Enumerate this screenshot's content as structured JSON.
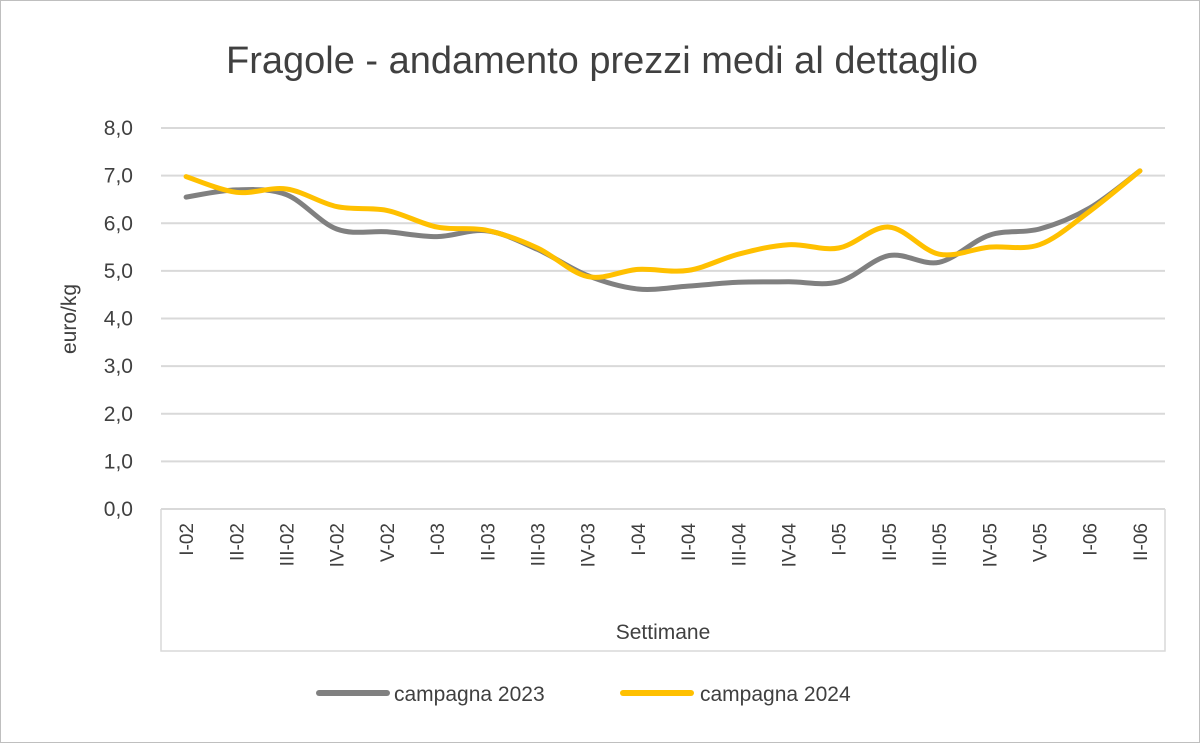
{
  "chart_data": {
    "type": "line",
    "title": "Fragole - andamento prezzi medi al dettaglio",
    "xlabel": "Settimane",
    "ylabel": "euro/kg",
    "ylim": [
      0,
      8
    ],
    "y_ticks": [
      "0,0",
      "1,0",
      "2,0",
      "3,0",
      "4,0",
      "5,0",
      "6,0",
      "7,0",
      "8,0"
    ],
    "categories": [
      "I-02",
      "II-02",
      "III-02",
      "IV-02",
      "V-02",
      "I-03",
      "II-03",
      "III-03",
      "IV-03",
      "I-04",
      "II-04",
      "III-04",
      "IV-04",
      "I-05",
      "II-05",
      "III-05",
      "IV-05",
      "V-05",
      "I-06",
      "II-06"
    ],
    "grid": true,
    "legend_position": "bottom",
    "series": [
      {
        "name": "campagna 2023",
        "color": "#808080",
        "values": [
          6.55,
          6.7,
          6.6,
          5.88,
          5.82,
          5.72,
          5.84,
          5.45,
          4.9,
          4.62,
          4.68,
          4.76,
          4.77,
          4.77,
          5.32,
          5.18,
          5.75,
          5.88,
          6.32,
          7.1
        ]
      },
      {
        "name": "campagna 2024",
        "color": "#ffc000",
        "values": [
          6.98,
          6.65,
          6.72,
          6.35,
          6.27,
          5.92,
          5.85,
          5.48,
          4.88,
          5.03,
          5.01,
          5.35,
          5.55,
          5.48,
          5.92,
          5.35,
          5.5,
          5.55,
          6.25,
          7.1
        ]
      }
    ]
  }
}
